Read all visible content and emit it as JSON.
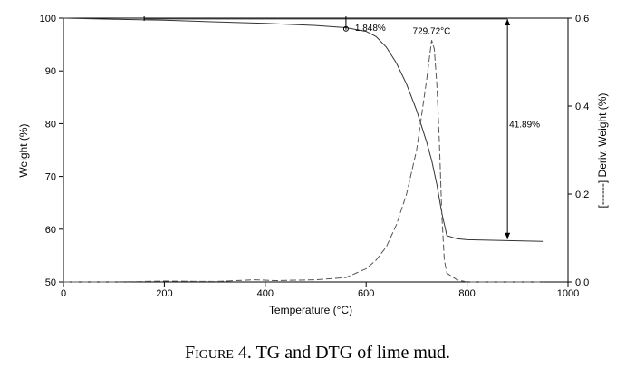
{
  "caption": {
    "label": "Figure",
    "number": "4.",
    "text": "TG and DTG of lime mud."
  },
  "chart_data": {
    "type": "line",
    "xlabel": "Temperature (°C)",
    "ylabel_left": "Weight (%)",
    "ylabel_right": "[------] Deriv. Weight (%)",
    "xlim": [
      0,
      1000
    ],
    "ylim_left": [
      50,
      100
    ],
    "ylim_right": [
      0.0,
      0.6
    ],
    "x_ticks": [
      "0",
      "200",
      "400",
      "600",
      "800",
      "1000"
    ],
    "y_ticks_left": [
      "50",
      "60",
      "70",
      "80",
      "90",
      "100"
    ],
    "y_ticks_right": [
      "0.0",
      "0.2",
      "0.4",
      "0.6"
    ],
    "grid": false,
    "series": [
      {
        "style": "solid",
        "axis": "left",
        "x": [
          0,
          100,
          200,
          300,
          400,
          500,
          560,
          600,
          620,
          640,
          660,
          680,
          700,
          720,
          730,
          740,
          750,
          760,
          780,
          800,
          850,
          900,
          950
        ],
        "y": [
          100,
          99.8,
          99.6,
          99.3,
          99.0,
          98.6,
          98.2,
          97.5,
          96.5,
          94.5,
          91.5,
          87.5,
          82.5,
          76.5,
          73.0,
          68.5,
          63.0,
          58.8,
          58.2,
          58.0,
          57.9,
          57.8,
          57.7
        ]
      },
      {
        "style": "dashed",
        "axis": "right",
        "x": [
          0,
          100,
          200,
          300,
          380,
          420,
          500,
          560,
          600,
          620,
          640,
          660,
          680,
          700,
          710,
          720,
          729.72,
          735,
          740,
          745,
          750,
          755,
          760,
          780,
          800,
          850,
          900,
          950
        ],
        "y": [
          0.0,
          0.0,
          0.002,
          0.001,
          0.005,
          0.003,
          0.005,
          0.01,
          0.03,
          0.05,
          0.08,
          0.13,
          0.2,
          0.3,
          0.38,
          0.46,
          0.55,
          0.53,
          0.45,
          0.32,
          0.15,
          0.05,
          0.02,
          0.005,
          0.0,
          0.0,
          0.0,
          0.0
        ]
      }
    ],
    "annotations": [
      {
        "text": "1.848%",
        "x": 560,
        "y_range_left": [
          98.152,
          100
        ]
      },
      {
        "text": "729.72°C",
        "x": 729.72,
        "y_right": 0.55
      },
      {
        "text": "41.89%",
        "x": 880,
        "y_range_left": [
          58.11,
          100
        ]
      }
    ]
  }
}
